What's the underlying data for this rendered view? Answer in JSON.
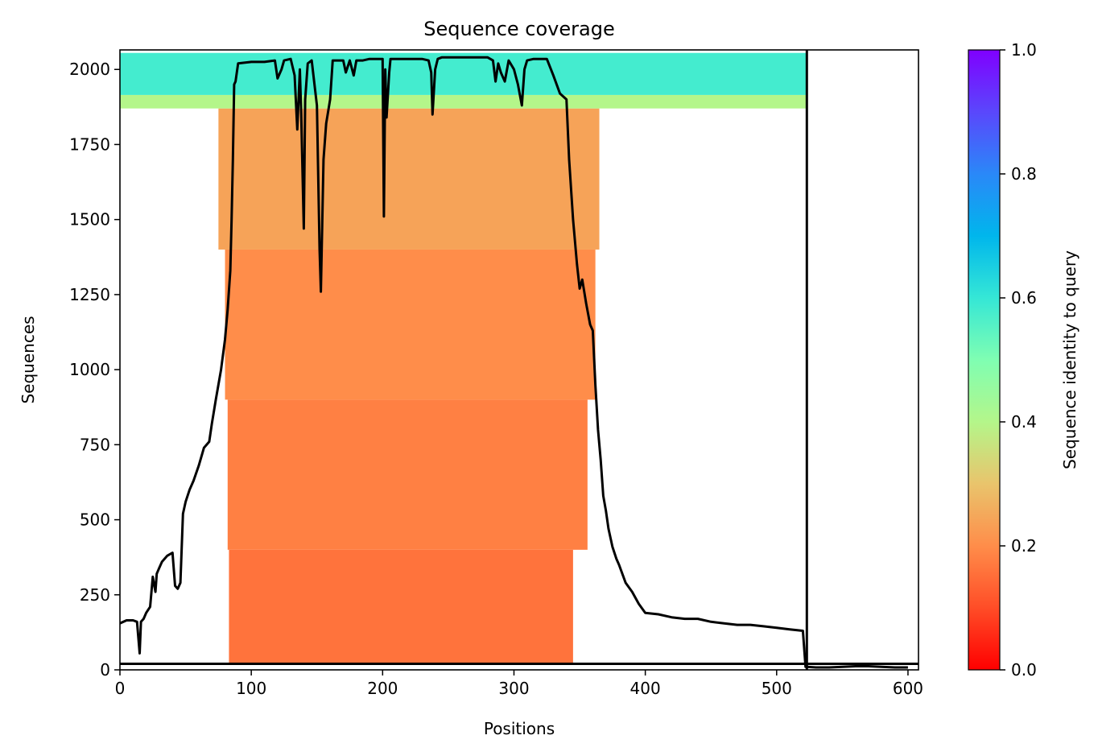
{
  "chart_data": {
    "type": "heatmap",
    "title": "Sequence coverage",
    "xlabel": "Positions",
    "ylabel": "Sequences",
    "xlim": [
      0,
      608
    ],
    "ylim": [
      0,
      2065
    ],
    "x_ticks": [
      0,
      100,
      200,
      300,
      400,
      500,
      600
    ],
    "y_ticks": [
      0,
      250,
      500,
      750,
      1000,
      1250,
      1500,
      1750,
      2000
    ],
    "colorbar": {
      "label": "Sequence identity to query",
      "min": 0.0,
      "max": 1.0,
      "ticks": [
        "0.0",
        "0.2",
        "0.4",
        "0.6",
        "0.8",
        "1.0"
      ],
      "colormap": "rainbow_r"
    },
    "chain_boundary_x": 523,
    "msa_blocks": [
      {
        "y0": 20,
        "y1": 400,
        "x0": 83,
        "x1": 345,
        "identity": 0.16
      },
      {
        "y0": 400,
        "y1": 900,
        "x0": 82,
        "x1": 356,
        "identity": 0.18
      },
      {
        "y0": 900,
        "y1": 1400,
        "x0": 80,
        "x1": 362,
        "identity": 0.2
      },
      {
        "y0": 1400,
        "y1": 1870,
        "x0": 75,
        "x1": 365,
        "identity": 0.24
      },
      {
        "y0": 1870,
        "y1": 1915,
        "x0": 0,
        "x1": 523,
        "identity": 0.4
      },
      {
        "y0": 1915,
        "y1": 2055,
        "x0": 0,
        "x1": 523,
        "identity": 0.58
      }
    ],
    "coverage_line": {
      "x": [
        0,
        5,
        10,
        13,
        15,
        16,
        18,
        20,
        23,
        25,
        27,
        28,
        30,
        32,
        34,
        36,
        40,
        42,
        44,
        46,
        48,
        50,
        53,
        56,
        60,
        64,
        68,
        70,
        73,
        77,
        80,
        82,
        84,
        85,
        86,
        87,
        88,
        90,
        100,
        110,
        118,
        120,
        123,
        125,
        130,
        133,
        135,
        137,
        138,
        140,
        141,
        143,
        146,
        150,
        152,
        153,
        155,
        157,
        160,
        162,
        165,
        170,
        172,
        175,
        178,
        180,
        185,
        190,
        195,
        200,
        201,
        202,
        203,
        205,
        206,
        208,
        210,
        220,
        230,
        235,
        237,
        238,
        240,
        242,
        245,
        250,
        260,
        270,
        280,
        284,
        286,
        288,
        290,
        293,
        296,
        300,
        303,
        306,
        308,
        310,
        315,
        320,
        325,
        330,
        335,
        340,
        342,
        345,
        348,
        350,
        352,
        355,
        358,
        360,
        362,
        364,
        366,
        368,
        370,
        372,
        375,
        378,
        380,
        385,
        390,
        395,
        400,
        410,
        420,
        430,
        440,
        450,
        460,
        470,
        480,
        490,
        500,
        510,
        520,
        522,
        523,
        530,
        540,
        550,
        560,
        570,
        580,
        590,
        600,
        608
      ],
      "y": [
        155,
        165,
        165,
        160,
        55,
        160,
        170,
        190,
        210,
        310,
        260,
        320,
        340,
        360,
        370,
        380,
        390,
        280,
        270,
        290,
        520,
        560,
        600,
        630,
        680,
        740,
        760,
        820,
        900,
        1000,
        1100,
        1200,
        1330,
        1500,
        1700,
        1950,
        1960,
        2020,
        2025,
        2025,
        2030,
        1970,
        2000,
        2030,
        2035,
        1980,
        1800,
        2000,
        1850,
        1470,
        1900,
        2020,
        2030,
        1880,
        1400,
        1260,
        1700,
        1820,
        1900,
        2030,
        2030,
        2030,
        1990,
        2030,
        1980,
        2030,
        2030,
        2035,
        2035,
        2035,
        1510,
        2000,
        1840,
        1990,
        2035,
        2035,
        2035,
        2035,
        2035,
        2030,
        1990,
        1850,
        2000,
        2035,
        2040,
        2040,
        2040,
        2040,
        2040,
        2030,
        1960,
        2020,
        1990,
        1960,
        2030,
        2000,
        1950,
        1880,
        2000,
        2030,
        2035,
        2035,
        2035,
        1980,
        1920,
        1900,
        1700,
        1500,
        1350,
        1270,
        1300,
        1220,
        1150,
        1130,
        950,
        800,
        700,
        580,
        530,
        470,
        410,
        370,
        350,
        290,
        260,
        220,
        190,
        185,
        175,
        170,
        170,
        160,
        155,
        150,
        150,
        145,
        140,
        135,
        130,
        10,
        10,
        8,
        8,
        10,
        12,
        12,
        10,
        8,
        8
      ]
    }
  }
}
